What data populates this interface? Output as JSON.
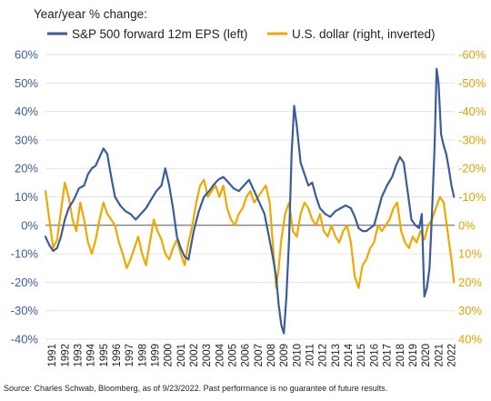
{
  "chart_data": {
    "type": "line",
    "title": "Year/year % change:",
    "legend_placement": "top",
    "source": "Source: Charles Schwab, Bloomberg, as of 9/23/2022. Past performance is no guarantee of future results.",
    "left_axis": {
      "range": [
        -40,
        60
      ],
      "ticks": [
        60,
        50,
        40,
        30,
        20,
        10,
        0,
        -10,
        -20,
        -30,
        -40
      ],
      "tick_labels": [
        "60%",
        "50%",
        "40%",
        "30%",
        "20%",
        "10%",
        "0%",
        "-10%",
        "-20%",
        "-30%",
        "-40%"
      ]
    },
    "right_axis": {
      "inverted": true,
      "range": [
        -60,
        40
      ],
      "tick_labels": [
        "-60%",
        "-50%",
        "-40%",
        "-30%",
        "-20%",
        "-10%",
        "0%",
        "10%",
        "20%",
        "30%",
        "40%"
      ]
    },
    "x_axis": {
      "range": [
        1991,
        2022.75
      ],
      "tick_labels": [
        "1991",
        "1992",
        "1993",
        "1994",
        "1995",
        "1996",
        "1997",
        "1998",
        "1999",
        "2000",
        "2001",
        "2002",
        "2003",
        "2004",
        "2005",
        "2006",
        "2007",
        "2008",
        "2009",
        "2010",
        "2011",
        "2012",
        "2013",
        "2014",
        "2015",
        "2016",
        "2017",
        "2018",
        "2019",
        "2020",
        "2021",
        "2022"
      ]
    },
    "grid": true,
    "series": [
      {
        "name": "S&P 500 forward 12m EPS (left)",
        "axis": "left",
        "color": "#3a5d99",
        "x": [
          1991.0,
          1991.3,
          1991.6,
          1991.9,
          1992.2,
          1992.5,
          1992.8,
          1993.2,
          1993.6,
          1994.0,
          1994.3,
          1994.6,
          1994.9,
          1995.2,
          1995.5,
          1995.8,
          1996.1,
          1996.4,
          1996.8,
          1997.2,
          1997.6,
          1998.0,
          1998.4,
          1998.8,
          1999.2,
          1999.6,
          2000.0,
          2000.3,
          2000.6,
          2000.9,
          2001.2,
          2001.5,
          2001.8,
          2002.1,
          2002.5,
          2002.9,
          2003.3,
          2003.7,
          2004.0,
          2004.4,
          2004.8,
          2005.2,
          2005.6,
          2006.0,
          2006.4,
          2006.8,
          2007.2,
          2007.6,
          2008.0,
          2008.3,
          2008.6,
          2008.9,
          2009.1,
          2009.3,
          2009.5,
          2009.7,
          2009.9,
          2010.1,
          2010.3,
          2010.5,
          2010.8,
          2011.1,
          2011.4,
          2011.7,
          2012.0,
          2012.3,
          2012.7,
          2013.1,
          2013.5,
          2013.9,
          2014.3,
          2014.7,
          2015.0,
          2015.3,
          2015.6,
          2015.9,
          2016.2,
          2016.5,
          2016.8,
          2017.1,
          2017.5,
          2017.9,
          2018.2,
          2018.5,
          2018.8,
          2019.1,
          2019.4,
          2019.7,
          2020.0,
          2020.2,
          2020.4,
          2020.6,
          2020.8,
          2021.0,
          2021.2,
          2021.35,
          2021.5,
          2021.7,
          2021.9,
          2022.1,
          2022.3,
          2022.5,
          2022.7
        ],
        "y": [
          -4,
          -7,
          -9,
          -8,
          -4,
          2,
          6,
          9,
          13,
          14,
          18,
          20,
          21,
          24,
          27,
          25,
          17,
          10,
          7,
          5,
          4,
          2,
          4,
          6,
          9,
          12,
          14,
          20,
          14,
          6,
          -4,
          -8,
          -11,
          -12,
          -2,
          5,
          10,
          12,
          14,
          16,
          17,
          15,
          13,
          12,
          14,
          16,
          12,
          8,
          4,
          -3,
          -10,
          -18,
          -28,
          -35,
          -38,
          -25,
          -5,
          25,
          42,
          35,
          22,
          18,
          14,
          15,
          10,
          6,
          4,
          3,
          5,
          6,
          7,
          6,
          3,
          -1,
          -2,
          -2,
          -1,
          0,
          5,
          10,
          14,
          17,
          21,
          24,
          22,
          12,
          2,
          0,
          -1,
          4,
          -25,
          -22,
          -15,
          5,
          28,
          55,
          50,
          32,
          28,
          25,
          20,
          14,
          10
        ]
      },
      {
        "name": "U.S. dollar (right, inverted)",
        "axis": "right",
        "color": "#f0a800",
        "x": [
          1991.0,
          1991.3,
          1991.6,
          1991.9,
          1992.2,
          1992.5,
          1992.8,
          1993.1,
          1993.4,
          1993.7,
          1994.0,
          1994.3,
          1994.6,
          1994.9,
          1995.2,
          1995.5,
          1995.8,
          1996.1,
          1996.4,
          1996.7,
          1997.0,
          1997.3,
          1997.6,
          1997.9,
          1998.2,
          1998.5,
          1998.8,
          1999.1,
          1999.4,
          1999.7,
          2000.0,
          2000.3,
          2000.6,
          2000.9,
          2001.2,
          2001.5,
          2001.8,
          2002.1,
          2002.4,
          2002.7,
          2003.0,
          2003.3,
          2003.6,
          2003.9,
          2004.2,
          2004.5,
          2004.8,
          2005.1,
          2005.4,
          2005.7,
          2006.0,
          2006.3,
          2006.6,
          2006.9,
          2007.2,
          2007.5,
          2007.8,
          2008.1,
          2008.4,
          2008.7,
          2008.9,
          2009.1,
          2009.3,
          2009.6,
          2009.9,
          2010.2,
          2010.5,
          2010.8,
          2011.1,
          2011.4,
          2011.7,
          2012.0,
          2012.3,
          2012.6,
          2012.9,
          2013.2,
          2013.5,
          2013.8,
          2014.1,
          2014.4,
          2014.7,
          2015.0,
          2015.3,
          2015.6,
          2015.9,
          2016.2,
          2016.5,
          2016.8,
          2017.1,
          2017.4,
          2017.7,
          2018.0,
          2018.3,
          2018.6,
          2018.9,
          2019.2,
          2019.5,
          2019.8,
          2020.1,
          2020.4,
          2020.7,
          2021.0,
          2021.3,
          2021.6,
          2021.9,
          2022.2,
          2022.5,
          2022.7
        ],
        "y": [
          -12,
          -2,
          8,
          5,
          -5,
          -15,
          -10,
          -2,
          2,
          -8,
          -2,
          6,
          10,
          5,
          -2,
          -8,
          -4,
          -2,
          0,
          6,
          10,
          15,
          12,
          8,
          4,
          10,
          14,
          6,
          -2,
          2,
          5,
          10,
          12,
          8,
          5,
          10,
          14,
          6,
          0,
          -8,
          -14,
          -16,
          -10,
          -12,
          -14,
          -10,
          -14,
          -6,
          -2,
          0,
          -4,
          -6,
          -10,
          -12,
          -8,
          -10,
          -12,
          -14,
          -8,
          10,
          22,
          15,
          5,
          -4,
          -8,
          2,
          4,
          -4,
          -8,
          -6,
          -2,
          0,
          -4,
          2,
          4,
          0,
          4,
          6,
          2,
          0,
          6,
          18,
          22,
          14,
          12,
          8,
          6,
          0,
          2,
          0,
          -2,
          -6,
          -8,
          2,
          6,
          8,
          4,
          6,
          2,
          5,
          0,
          -2,
          -6,
          -10,
          -8,
          2,
          12,
          20
        ]
      }
    ]
  }
}
